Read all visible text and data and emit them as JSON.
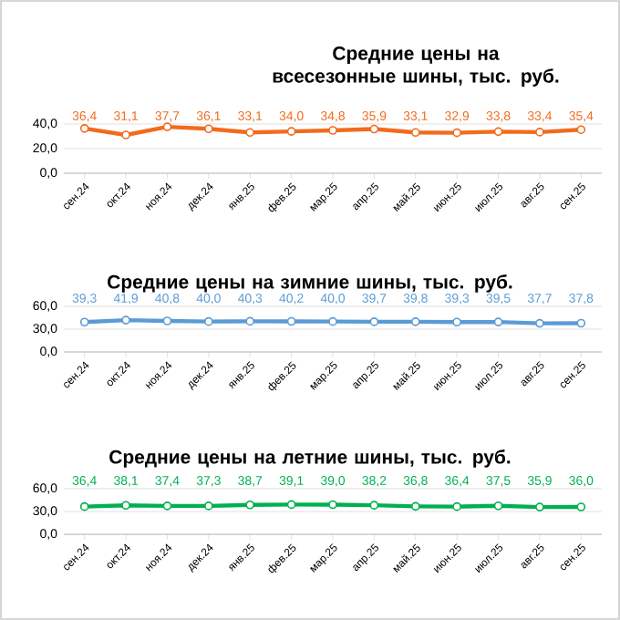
{
  "chart_data": [
    {
      "type": "line",
      "title": "Средние цены на всесезонные шины, тыс. руб.",
      "categories": [
        "сен.24",
        "окт.24",
        "ноя.24",
        "дек.24",
        "янв.25",
        "фев.25",
        "мар.25",
        "апр.25",
        "май.25",
        "июн.25",
        "июл.25",
        "авг.25",
        "сен.25"
      ],
      "values": [
        36.4,
        31.1,
        37.7,
        36.1,
        33.1,
        34.0,
        34.8,
        35.9,
        33.1,
        32.9,
        33.8,
        33.4,
        35.4
      ],
      "value_labels": [
        "36,4",
        "31,1",
        "37,7",
        "36,1",
        "33,1",
        "34,0",
        "34,8",
        "35,9",
        "33,1",
        "32,9",
        "33,8",
        "33,4",
        "35,4"
      ],
      "color": "#f26b1d",
      "ylim": [
        0,
        40
      ],
      "yticks": [
        {
          "value": 0,
          "label": "0,0"
        },
        {
          "value": 20,
          "label": "20,0"
        },
        {
          "value": 40,
          "label": "40,0"
        }
      ],
      "grid": "y",
      "marker": "circle"
    },
    {
      "type": "line",
      "title": "Средние цены на зимние шины, тыс. руб.",
      "categories": [
        "сен.24",
        "окт.24",
        "ноя.24",
        "дек.24",
        "янв.25",
        "фев.25",
        "мар.25",
        "апр.25",
        "май.25",
        "июн.25",
        "июл.25",
        "авг.25",
        "сен.25"
      ],
      "values": [
        39.3,
        41.9,
        40.8,
        40.0,
        40.3,
        40.2,
        40.0,
        39.7,
        39.8,
        39.3,
        39.5,
        37.7,
        37.8
      ],
      "value_labels": [
        "39,3",
        "41,9",
        "40,8",
        "40,0",
        "40,3",
        "40,2",
        "40,0",
        "39,7",
        "39,8",
        "39,3",
        "39,5",
        "37,7",
        "37,8"
      ],
      "color": "#5b9bd5",
      "ylim": [
        0,
        60
      ],
      "yticks": [
        {
          "value": 0,
          "label": "0,0"
        },
        {
          "value": 30,
          "label": "30,0"
        },
        {
          "value": 60,
          "label": "60,0"
        }
      ],
      "grid": "y",
      "marker": "circle"
    },
    {
      "type": "line",
      "title": "Средние цены на летние шины, тыс. руб.",
      "categories": [
        "сен.24",
        "окт.24",
        "ноя.24",
        "дек.24",
        "янв.25",
        "фев.25",
        "мар.25",
        "апр.25",
        "май.25",
        "июн.25",
        "июл.25",
        "авг.25",
        "сен.25"
      ],
      "values": [
        36.4,
        38.1,
        37.4,
        37.3,
        38.7,
        39.1,
        39.0,
        38.2,
        36.8,
        36.4,
        37.5,
        35.9,
        36.0
      ],
      "value_labels": [
        "36,4",
        "38,1",
        "37,4",
        "37,3",
        "38,7",
        "39,1",
        "39,0",
        "38,2",
        "36,8",
        "36,4",
        "37,5",
        "35,9",
        "36,0"
      ],
      "color": "#00b050",
      "ylim": [
        0,
        60
      ],
      "yticks": [
        {
          "value": 0,
          "label": "0,0"
        },
        {
          "value": 30,
          "label": "30,0"
        },
        {
          "value": 60,
          "label": "60,0"
        }
      ],
      "grid": "y",
      "marker": "circle"
    }
  ]
}
